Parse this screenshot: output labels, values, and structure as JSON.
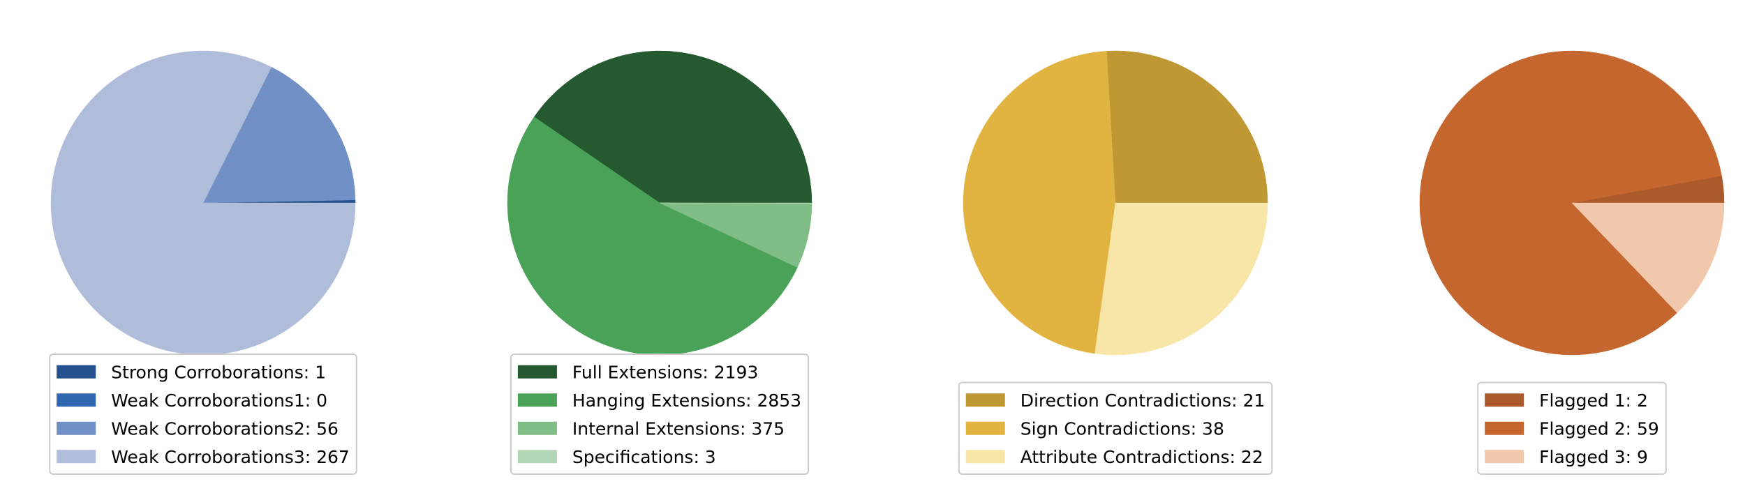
{
  "chart_data": [
    {
      "type": "pie",
      "legend_placement": "bottom",
      "slices": [
        {
          "label": "Strong Corroborations: 1",
          "value": 1,
          "color": "#25528f"
        },
        {
          "label": "Weak Corroborations1: 0",
          "value": 0,
          "color": "#2f67b1"
        },
        {
          "label": "Weak Corroborations2: 56",
          "value": 56,
          "color": "#7190c6"
        },
        {
          "label": "Weak Corroborations3: 267",
          "value": 267,
          "color": "#b0bdda"
        }
      ]
    },
    {
      "type": "pie",
      "legend_placement": "bottom",
      "slices": [
        {
          "label": "Full Extensions: 2193",
          "value": 2193,
          "color": "#25592f"
        },
        {
          "label": "Hanging Extensions: 2853",
          "value": 2853,
          "color": "#4aa258"
        },
        {
          "label": "Internal Extensions: 375",
          "value": 375,
          "color": "#80bd87"
        },
        {
          "label": "Specifications: 3",
          "value": 3,
          "color": "#b3d7b6"
        }
      ]
    },
    {
      "type": "pie",
      "legend_placement": "bottom",
      "slices": [
        {
          "label": "Direction Contradictions: 21",
          "value": 21,
          "color": "#bf9733"
        },
        {
          "label": "Sign Contradictions: 38",
          "value": 38,
          "color": "#e1b442"
        },
        {
          "label": "Attribute Contradictions: 22",
          "value": 22,
          "color": "#f8e6a8"
        }
      ]
    },
    {
      "type": "pie",
      "legend_placement": "bottom",
      "slices": [
        {
          "label": "Flagged 1: 2",
          "value": 2,
          "color": "#ab5a2b"
        },
        {
          "label": "Flagged 2: 59",
          "value": 59,
          "color": "#c6662f"
        },
        {
          "label": "Flagged 3: 9",
          "value": 9,
          "color": "#f1c8ab"
        }
      ]
    }
  ]
}
